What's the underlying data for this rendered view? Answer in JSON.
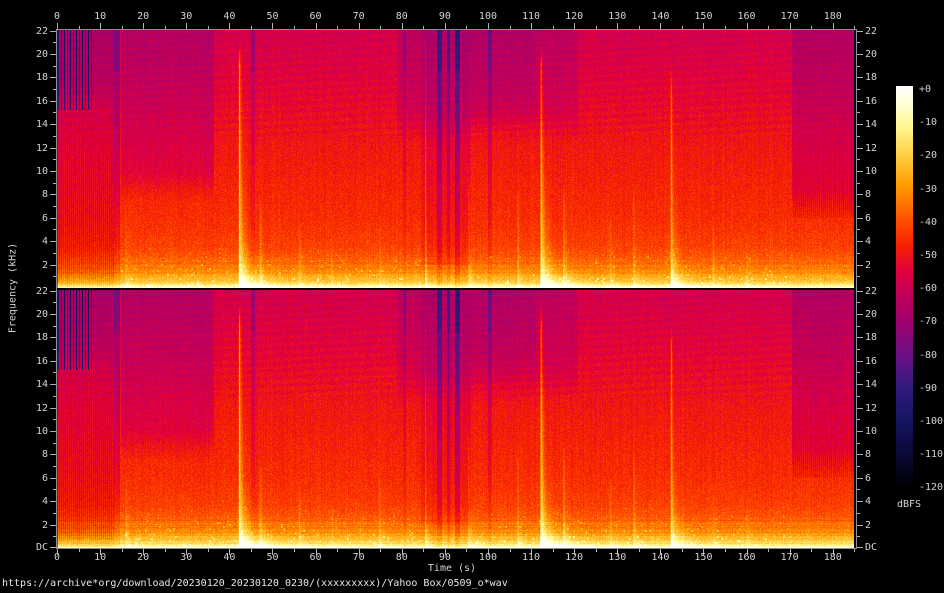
{
  "footer": {
    "url": "https://archive*org/download/20230120_20230120_0230/(xxxxxxxxx)/Yahoo Box/0509_o*wav"
  },
  "chart_data": {
    "type": "heatmap",
    "subtype": "stereo-audio-spectrogram",
    "title": "https://archive*org/download/20230120_20230120_0230/(xxxxxxxxx)/Yahoo Box/0509_o*wav",
    "channels": [
      "channel-1-top",
      "channel-2-bottom"
    ],
    "x_axis": {
      "label": "Time (s)",
      "min": 0,
      "max": 185.4,
      "major_tick_step": 10,
      "minor_tick_step": 5,
      "tick_labels": [
        "0",
        "10",
        "20",
        "30",
        "40",
        "50",
        "60",
        "70",
        "80",
        "90",
        "100",
        "110",
        "120",
        "130",
        "140",
        "150",
        "160",
        "170",
        "180"
      ]
    },
    "y_axis": {
      "label": "Frequency (kHz)",
      "max_khz": 22.05,
      "major_tick_step_khz": 2,
      "minor_tick_step_khz": 1,
      "channel_tick_labels": [
        "22",
        "20",
        "18",
        "16",
        "14",
        "12",
        "10",
        "8",
        "6",
        "4",
        "2"
      ],
      "dc_label": "DC"
    },
    "colorbar": {
      "label": "dBFS",
      "min": -120,
      "max": 0,
      "tick_labels": [
        "+0",
        "-10",
        "-20",
        "-30",
        "-40",
        "-50",
        "-60",
        "-70",
        "-80",
        "-90",
        "-100",
        "-110",
        "-120"
      ],
      "palette": [
        [
          0,
          "#ffffff"
        ],
        [
          -6,
          "#ffffd0"
        ],
        [
          -12,
          "#fff791"
        ],
        [
          -20,
          "#ffd34a"
        ],
        [
          -30,
          "#ff9b00"
        ],
        [
          -40,
          "#ff5000"
        ],
        [
          -48,
          "#f62000"
        ],
        [
          -55,
          "#e4003a"
        ],
        [
          -60,
          "#cc0052"
        ],
        [
          -70,
          "#a4006d"
        ],
        [
          -80,
          "#6f0f85"
        ],
        [
          -90,
          "#341a7e"
        ],
        [
          -100,
          "#151563"
        ],
        [
          -110,
          "#0a0a38"
        ],
        [
          -120,
          "#000005"
        ]
      ]
    },
    "features": [
      "two nearly identical stereo channels stacked vertically, each DC-22.05 kHz",
      "strong low-frequency energy below 2 kHz; brightest yellow-white band near DC across full duration",
      "fine vertical comb striping 0-13 s with near-black lines above 15 kHz in first 8 s",
      "dark notch column at ~14 s",
      "loud broadband transients with resonant decay tails at ~42 s and ~112 s reaching ~21 kHz",
      "medium transient at ~142.5 s; thin bright line at ~85.6 s",
      "quieter dark band ~85-96 s with deep navy notches near 89, 91 and 93 s",
      "purple-tinted upper band ~15-36 s and ~79-121 s",
      "striped quieter purple region ~170-185 s",
      "scattered yellow speckle below ~4.5 kHz between events"
    ],
    "render": {
      "freq_profile": [
        [
          0,
          -4
        ],
        [
          0.12,
          -9
        ],
        [
          0.35,
          -17
        ],
        [
          0.8,
          -25
        ],
        [
          1.4,
          -32
        ],
        [
          2.3,
          -38
        ],
        [
          3.6,
          -43
        ],
        [
          6,
          -46
        ],
        [
          9,
          -48
        ],
        [
          12,
          -50
        ],
        [
          14,
          -52
        ],
        [
          17,
          -55
        ],
        [
          19.5,
          -57
        ],
        [
          21,
          -58
        ],
        [
          22.05,
          -59
        ]
      ],
      "purple_zones": [
        [
          0,
          13.2,
          15.2,
          -4,
          0
        ],
        [
          14.8,
          36.5,
          7.5,
          -7,
          0
        ],
        [
          79,
          121,
          12.5,
          -5,
          0
        ],
        [
          96,
          111,
          14,
          -3,
          0
        ],
        [
          170.5,
          186,
          6,
          -7,
          1
        ]
      ],
      "quiet_band": [
        84.5,
        96,
        -4
      ],
      "dark_columns": [
        [
          13.9,
          1.3,
          -13
        ],
        [
          45.4,
          0.9,
          -7
        ],
        [
          80.6,
          0.6,
          -6
        ],
        [
          88.7,
          1.2,
          -18
        ],
        [
          90.9,
          0.7,
          -14
        ],
        [
          92.9,
          1.3,
          -20
        ],
        [
          100.4,
          1.0,
          -9
        ]
      ],
      "transients": [
        [
          42.35,
          26,
          21,
          3.5
        ],
        [
          112.35,
          26,
          21,
          3.5
        ],
        [
          142.55,
          20,
          19,
          2.5
        ],
        [
          85.6,
          13,
          22,
          0.5
        ],
        [
          95.6,
          8,
          10,
          1
        ],
        [
          107,
          7,
          9,
          0.8
        ],
        [
          117.6,
          9,
          9,
          1.5
        ],
        [
          16.1,
          7,
          7,
          0.6
        ],
        [
          133.9,
          8,
          9,
          1
        ],
        [
          56.3,
          6,
          6,
          0.8
        ],
        [
          63.8,
          5,
          5,
          0.6
        ],
        [
          74.9,
          6,
          7,
          0.7
        ],
        [
          128.4,
          6,
          7,
          0.8
        ],
        [
          152.3,
          6,
          6,
          0.8
        ],
        [
          160.1,
          5,
          5,
          0.6
        ],
        [
          47.2,
          7,
          8,
          1.2
        ]
      ]
    }
  }
}
